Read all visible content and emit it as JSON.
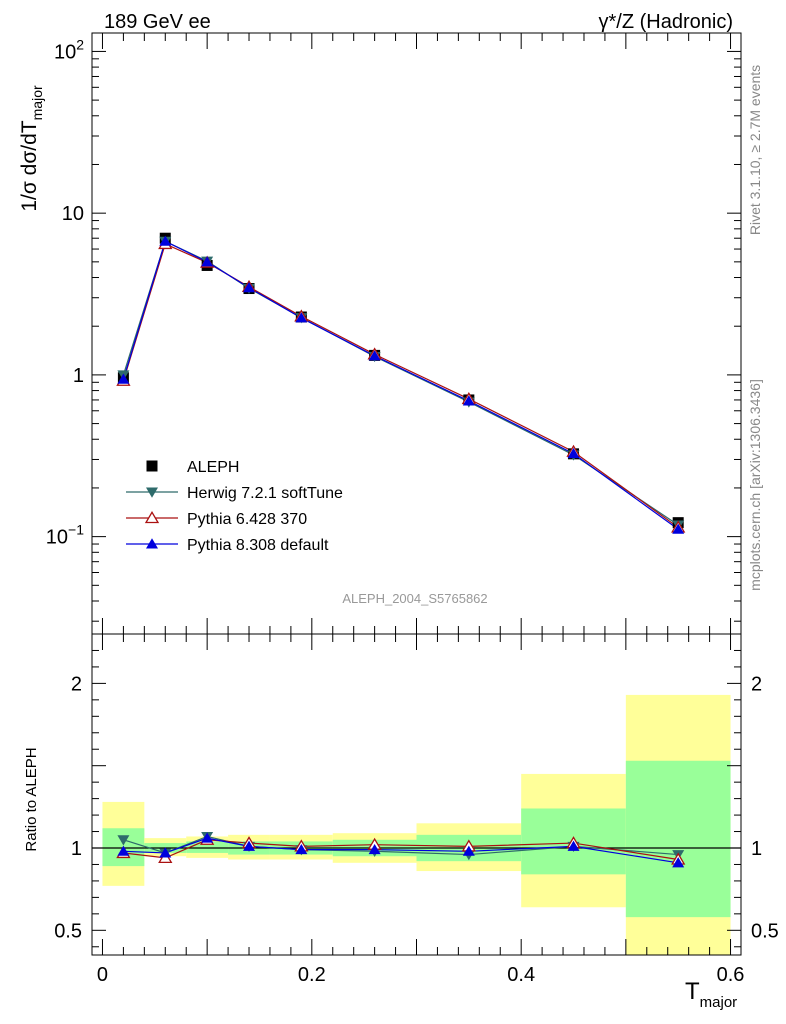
{
  "header": {
    "left_title": "189 GeV ee",
    "right_title": "γ*/Z (Hadronic)"
  },
  "side_text": {
    "rivet": "Rivet 3.1.10, ≥ 2.7M events",
    "mcplots": "mcplots.cern.ch [arXiv:1306.3436]"
  },
  "analysis_id": "ALEPH_2004_S5765862",
  "chart_data": [
    {
      "type": "line",
      "panel": "main",
      "scale": "log",
      "ylabel": "1/σ  dσ/dT",
      "ylabel_sub": "major",
      "ylim": [
        0.025,
        130
      ],
      "y_ticks": [
        "10^-1",
        "1",
        "10",
        "10^2"
      ],
      "x": [
        0.02,
        0.06,
        0.1,
        0.14,
        0.19,
        0.26,
        0.35,
        0.45,
        0.55
      ],
      "series": [
        {
          "name": "ALEPH",
          "color": "#000000",
          "marker": "square",
          "values": [
            0.96,
            7.0,
            4.75,
            3.42,
            2.28,
            1.32,
            0.7,
            0.325,
            0.122
          ]
        },
        {
          "name": "Herwig 7.2.1 softTune",
          "color": "#2e6b6b",
          "marker": "triangle-down",
          "values": [
            1.0,
            6.7,
            5.05,
            3.43,
            2.26,
            1.3,
            0.68,
            0.32,
            0.118
          ]
        },
        {
          "name": "Pythia 6.428 370",
          "color": "#aa1111",
          "marker": "triangle-up-open",
          "values": [
            0.92,
            6.45,
            4.95,
            3.5,
            2.3,
            1.34,
            0.71,
            0.335,
            0.114
          ]
        },
        {
          "name": "Pythia 8.308 default",
          "color": "#0000dd",
          "marker": "triangle-up",
          "values": [
            0.94,
            6.7,
            5.0,
            3.46,
            2.25,
            1.31,
            0.69,
            0.326,
            0.111
          ]
        }
      ]
    },
    {
      "type": "line",
      "panel": "ratio",
      "ylabel": "Ratio to ALEPH",
      "xlabel": "T",
      "xlabel_sub": "major",
      "xlim": [
        -0.01,
        0.61
      ],
      "ylim": [
        0.35,
        2.3
      ],
      "x_ticks": [
        0,
        0.2,
        0.4,
        0.6
      ],
      "x_tick_labels": [
        "0",
        "0.2",
        "0.4",
        "0.6"
      ],
      "y_ticks": [
        0.5,
        1,
        2
      ],
      "y_tick_labels": [
        "0.5",
        "1",
        "2"
      ],
      "bins": [
        [
          0.0,
          0.04
        ],
        [
          0.04,
          0.08
        ],
        [
          0.08,
          0.12
        ],
        [
          0.12,
          0.16
        ],
        [
          0.16,
          0.22
        ],
        [
          0.22,
          0.3
        ],
        [
          0.3,
          0.4
        ],
        [
          0.4,
          0.5
        ],
        [
          0.5,
          0.6
        ]
      ],
      "band_green": [
        [
          0.89,
          1.12
        ],
        [
          0.97,
          1.03
        ],
        [
          0.97,
          1.04
        ],
        [
          0.96,
          1.04
        ],
        [
          0.96,
          1.04
        ],
        [
          0.95,
          1.05
        ],
        [
          0.92,
          1.08
        ],
        [
          0.84,
          1.24
        ],
        [
          0.58,
          1.53
        ]
      ],
      "band_yellow": [
        [
          0.77,
          1.28
        ],
        [
          0.95,
          1.06
        ],
        [
          0.94,
          1.07
        ],
        [
          0.93,
          1.08
        ],
        [
          0.93,
          1.08
        ],
        [
          0.91,
          1.09
        ],
        [
          0.86,
          1.15
        ],
        [
          0.64,
          1.45
        ],
        [
          0.3,
          1.93
        ]
      ],
      "band_colors": {
        "green": "#99ff99",
        "yellow": "#ffff99"
      },
      "x": [
        0.02,
        0.06,
        0.1,
        0.14,
        0.19,
        0.26,
        0.35,
        0.45,
        0.55
      ],
      "series": [
        {
          "name": "Herwig 7.2.1 softTune",
          "color": "#2e6b6b",
          "marker": "triangle-down",
          "values": [
            1.05,
            0.97,
            1.07,
            1.01,
            0.99,
            0.98,
            0.96,
            1.01,
            0.96
          ]
        },
        {
          "name": "Pythia 6.428 370",
          "color": "#aa1111",
          "marker": "triangle-up-open",
          "values": [
            0.97,
            0.94,
            1.05,
            1.03,
            1.01,
            1.02,
            1.01,
            1.03,
            0.93
          ]
        },
        {
          "name": "Pythia 8.308 default",
          "color": "#0000dd",
          "marker": "triangle-up",
          "values": [
            0.98,
            0.97,
            1.06,
            1.01,
            0.99,
            0.99,
            0.98,
            1.01,
            0.91
          ]
        }
      ]
    }
  ]
}
